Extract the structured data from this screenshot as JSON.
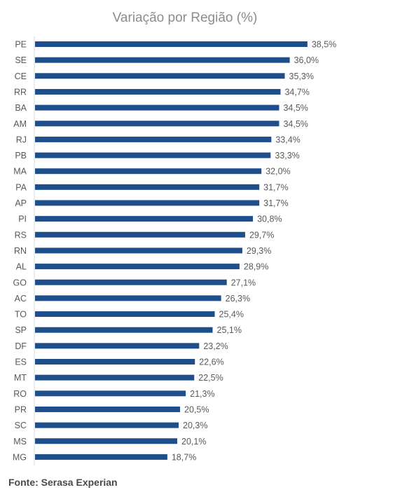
{
  "chart_data": {
    "type": "bar",
    "orientation": "horizontal",
    "title": "Variação por Região (%)",
    "categories": [
      "PE",
      "SE",
      "CE",
      "RR",
      "BA",
      "AM",
      "RJ",
      "PB",
      "MA",
      "PA",
      "AP",
      "PI",
      "RS",
      "RN",
      "AL",
      "GO",
      "AC",
      "TO",
      "SP",
      "DF",
      "ES",
      "MT",
      "RO",
      "PR",
      "SC",
      "MS",
      "MG"
    ],
    "values": [
      38.5,
      36.0,
      35.3,
      34.7,
      34.5,
      34.5,
      33.4,
      33.3,
      32.0,
      31.7,
      31.7,
      30.8,
      29.7,
      29.3,
      28.9,
      27.1,
      26.3,
      25.4,
      25.1,
      23.2,
      22.6,
      22.5,
      21.3,
      20.5,
      20.3,
      20.1,
      18.7
    ],
    "value_labels": [
      "38,5%",
      "36,0%",
      "35,3%",
      "34,7%",
      "34,5%",
      "34,5%",
      "33,4%",
      "33,3%",
      "32,0%",
      "31,7%",
      "31,7%",
      "30,8%",
      "29,7%",
      "29,3%",
      "28,9%",
      "27,1%",
      "26,3%",
      "25,4%",
      "25,1%",
      "23,2%",
      "22,6%",
      "22,5%",
      "21,3%",
      "20,5%",
      "20,3%",
      "20,1%",
      "18,7%"
    ],
    "bar_color": "#1f4e8c",
    "grid": false,
    "legend": "none"
  },
  "footer": {
    "source": "Fonte: Serasa Experian"
  }
}
